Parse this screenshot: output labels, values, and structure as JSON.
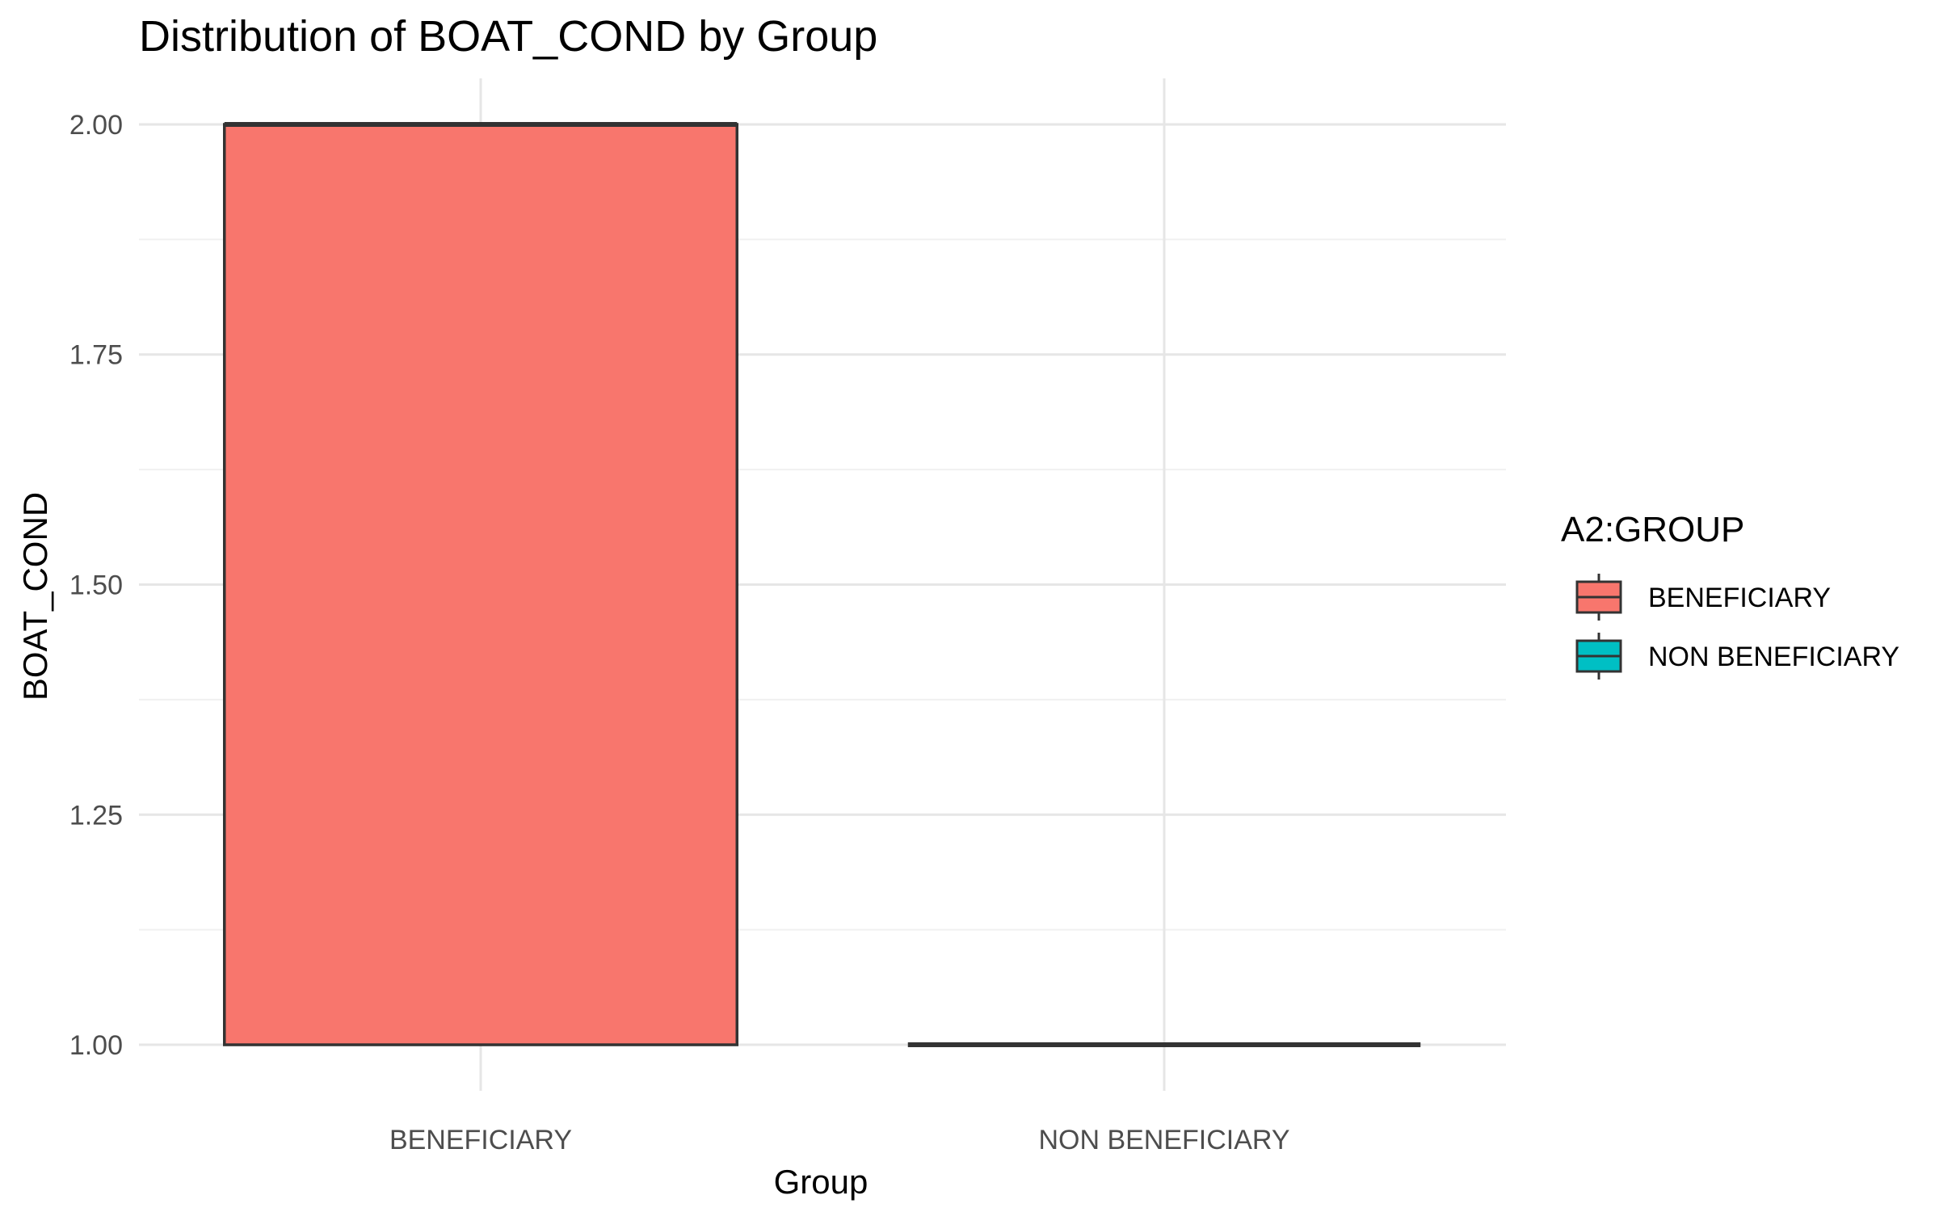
{
  "chart_data": {
    "type": "boxplot",
    "title": "Distribution of BOAT_COND by Group",
    "xlabel": "Group",
    "ylabel": "BOAT_COND",
    "categories": [
      "BENEFICIARY",
      "NON BENEFICIARY"
    ],
    "y_ticks": [
      "1.00",
      "1.25",
      "1.50",
      "1.75",
      "2.00"
    ],
    "y_tick_values": [
      1.0,
      1.25,
      1.5,
      1.75,
      2.0
    ],
    "ylim": [
      0.95,
      2.05
    ],
    "grid": true,
    "series": [
      {
        "name": "BENEFICIARY",
        "color": "#F8766D",
        "min": 1.0,
        "q1": 1.0,
        "median": 2.0,
        "q3": 2.0,
        "max": 2.0
      },
      {
        "name": "NON BENEFICIARY",
        "color": "#00BFC4",
        "min": 1.0,
        "q1": 1.0,
        "median": 1.0,
        "q3": 1.0,
        "max": 1.0
      }
    ],
    "legend": {
      "title": "A2:GROUP",
      "position": "right",
      "entries": [
        "BENEFICIARY",
        "NON BENEFICIARY"
      ]
    }
  }
}
